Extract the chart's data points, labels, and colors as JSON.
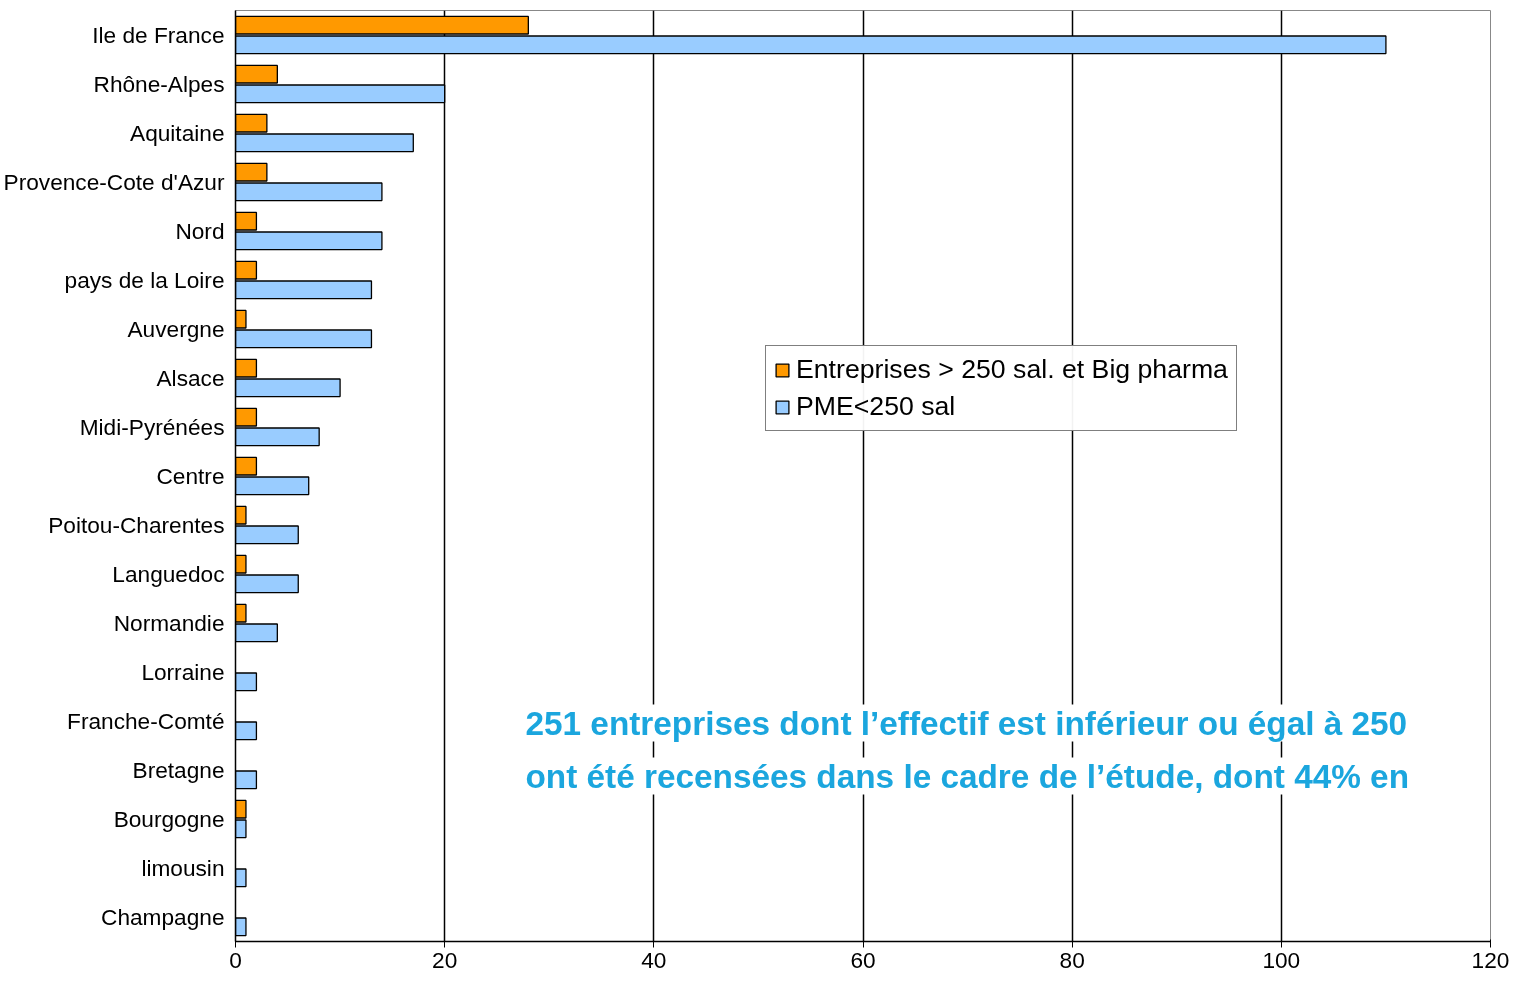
{
  "chart_data": {
    "type": "bar",
    "orientation": "horizontal",
    "categories": [
      "Ile de France",
      "Rhône-Alpes",
      "Aquitaine",
      "Provence-Cote d'Azur",
      "Nord",
      "pays de la Loire",
      "Auvergne",
      "Alsace",
      "Midi-Pyrénées",
      "Centre",
      "Poitou-Charentes",
      "Languedoc",
      "Normandie",
      "Lorraine",
      "Franche-Comté",
      "Bretagne",
      "Bourgogne",
      "limousin",
      "Champagne"
    ],
    "series": [
      {
        "name": "Entreprises > 250 sal. et Big pharma",
        "color": "#ff9900",
        "values": [
          28,
          4,
          3,
          3,
          2,
          2,
          1,
          2,
          2,
          2,
          1,
          1,
          1,
          0,
          0,
          0,
          1,
          0,
          0
        ]
      },
      {
        "name": "PME<250 sal",
        "color": "#99ccff",
        "values": [
          110,
          20,
          17,
          14,
          14,
          13,
          13,
          10,
          8,
          7,
          6,
          6,
          4,
          2,
          2,
          2,
          1,
          1,
          1
        ]
      }
    ],
    "xlim": [
      0,
      120
    ],
    "xticks": [
      0,
      20,
      40,
      60,
      80,
      100,
      120
    ],
    "grid": "x",
    "legend": "right",
    "annotations": [
      "251 entreprises dont l’effectif est inférieur ou égal à 250",
      "ont été recensées dans le cadre de l’étude, dont 44% en"
    ]
  }
}
